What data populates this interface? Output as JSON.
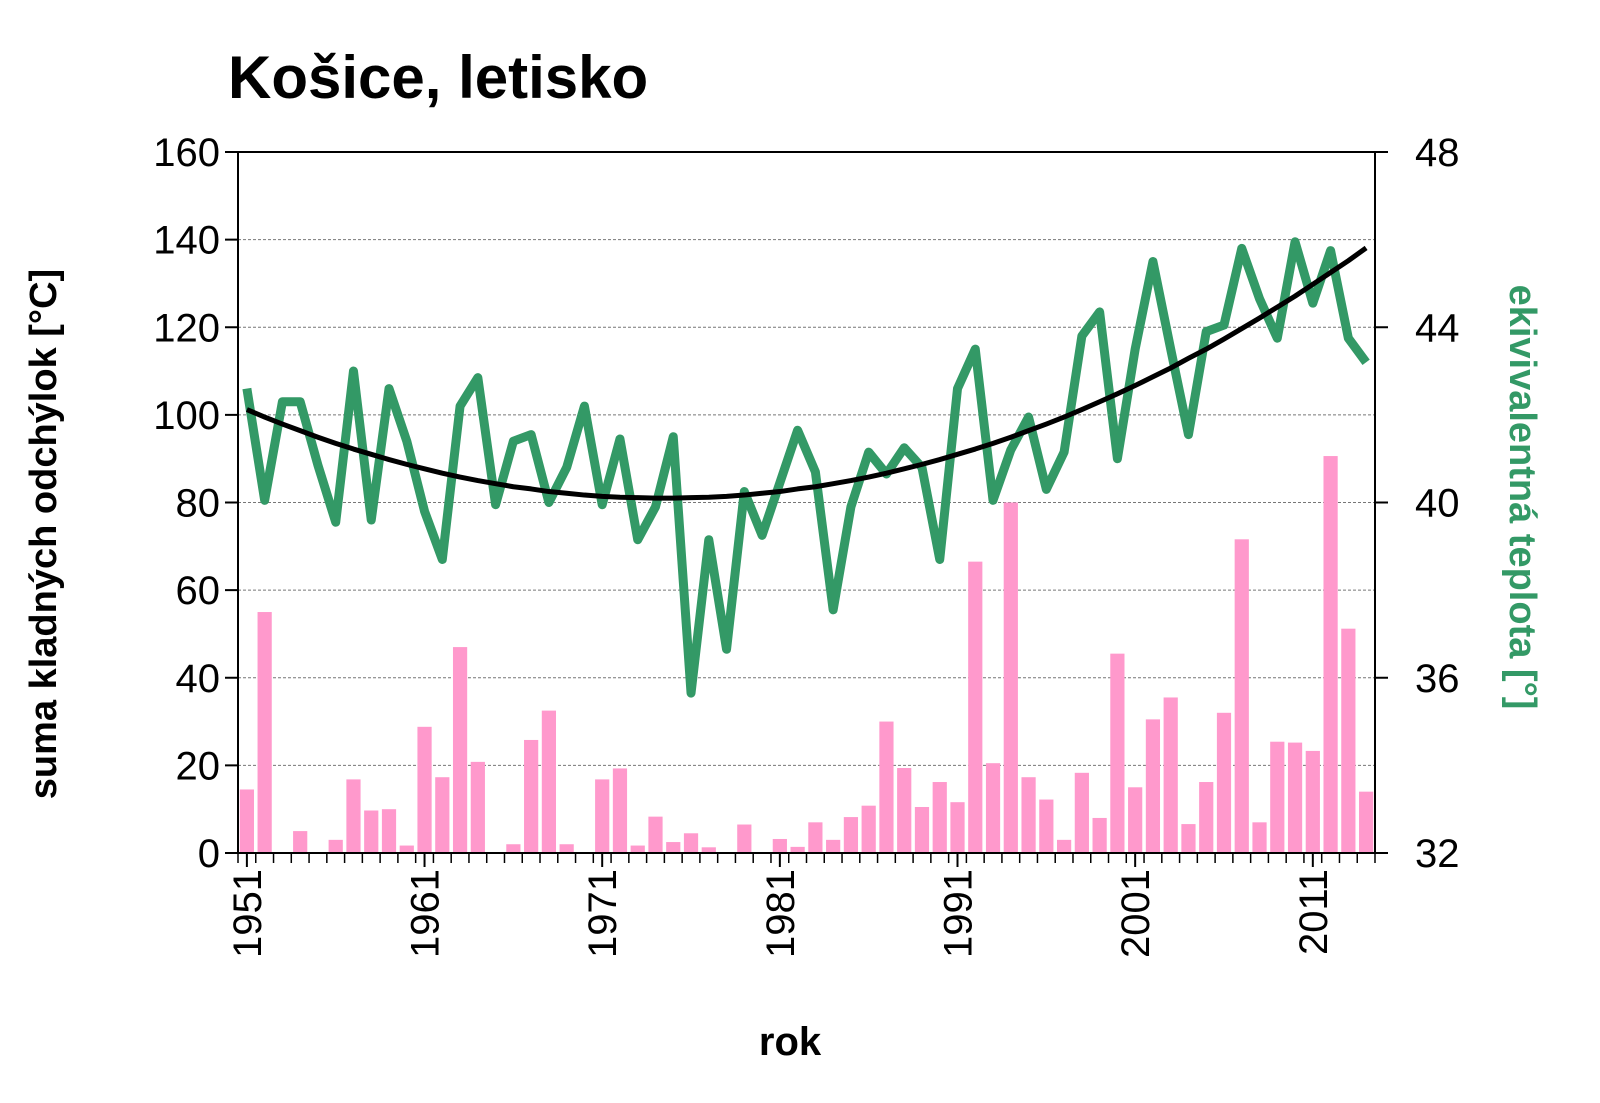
{
  "chart_data": {
    "type": "bar",
    "title": "Košice, letisko",
    "x_label": "rok",
    "y_label": "suma kladných odchýlok [°C]",
    "y2_label": "ekivivalentná teplota [°]",
    "x": [
      1951,
      1952,
      1953,
      1954,
      1955,
      1956,
      1957,
      1958,
      1959,
      1960,
      1961,
      1962,
      1963,
      1964,
      1965,
      1966,
      1967,
      1968,
      1969,
      1970,
      1971,
      1972,
      1973,
      1974,
      1975,
      1976,
      1977,
      1978,
      1979,
      1980,
      1981,
      1982,
      1983,
      1984,
      1985,
      1986,
      1987,
      1988,
      1989,
      1990,
      1991,
      1992,
      1993,
      1994,
      1995,
      1996,
      1997,
      1998,
      1999,
      2000,
      2001,
      2002,
      2003,
      2004,
      2005,
      2006,
      2007,
      2008,
      2009,
      2010,
      2011,
      2012,
      2013,
      2014
    ],
    "xlim": [
      1950.5,
      2014.5
    ],
    "xticks": [
      1951,
      1961,
      1971,
      1981,
      1991,
      2001,
      2011
    ],
    "ylim": [
      0,
      160
    ],
    "yticks": [
      0,
      20,
      40,
      60,
      80,
      100,
      120,
      140,
      160
    ],
    "y2lim": [
      32,
      48
    ],
    "y2ticks": [
      32,
      36,
      40,
      44,
      48
    ],
    "grid": true,
    "series": [
      {
        "type": "bar",
        "color": "#ff99cc",
        "values": [
          14.5,
          55,
          0,
          5,
          0,
          3,
          16.8,
          9.7,
          10,
          1.7,
          28.8,
          17.3,
          47,
          20.8,
          0,
          2,
          25.8,
          32.5,
          2,
          0,
          16.8,
          19.3,
          1.7,
          8.3,
          2.5,
          4.5,
          1.3,
          0,
          6.5,
          0,
          3.2,
          1.4,
          7,
          3,
          8.2,
          10.8,
          30,
          19.4,
          10.5,
          16.2,
          11.6,
          66.5,
          20.5,
          80,
          17.3,
          12.2,
          3,
          18.3,
          8,
          45.5,
          15,
          30.5,
          35.5,
          6.6,
          16.2,
          32,
          71.6,
          7,
          25.4,
          25.2,
          23.3,
          90.6,
          51.2,
          14
        ]
      },
      {
        "type": "line",
        "axis": "y2",
        "color": "#339966",
        "values": [
          42.6,
          40.05,
          42.3,
          42.3,
          40.85,
          39.55,
          43.0,
          39.6,
          42.6,
          41.4,
          39.8,
          38.7,
          42.2,
          42.85,
          39.95,
          41.4,
          41.55,
          40.0,
          40.8,
          42.2,
          39.95,
          41.45,
          39.15,
          39.9,
          41.5,
          35.65,
          39.15,
          36.65,
          40.25,
          39.25,
          40.45,
          41.65,
          40.7,
          37.55,
          39.9,
          41.15,
          40.65,
          41.25,
          40.8,
          38.7,
          42.6,
          43.5,
          40.05,
          41.2,
          41.95,
          40.3,
          41.15,
          43.8,
          44.35,
          41.0,
          43.5,
          45.5,
          43.5,
          41.55,
          43.9,
          44.05,
          45.8,
          44.65,
          43.75,
          45.95,
          44.55,
          45.75,
          43.75,
          43.2
        ]
      },
      {
        "type": "line",
        "axis": "y2",
        "color": "#000000",
        "values": [
          42.12,
          41.95,
          41.79,
          41.64,
          41.49,
          41.35,
          41.22,
          41.1,
          40.98,
          40.87,
          40.77,
          40.67,
          40.58,
          40.5,
          40.43,
          40.36,
          40.31,
          40.25,
          40.21,
          40.17,
          40.14,
          40.12,
          40.11,
          40.1,
          40.1,
          40.11,
          40.12,
          40.14,
          40.17,
          40.21,
          40.25,
          40.31,
          40.36,
          40.43,
          40.5,
          40.58,
          40.67,
          40.77,
          40.87,
          40.98,
          41.1,
          41.22,
          41.35,
          41.49,
          41.64,
          41.79,
          41.95,
          42.12,
          42.3,
          42.48,
          42.67,
          42.87,
          43.07,
          43.29,
          43.5,
          43.73,
          43.97,
          44.21,
          44.46,
          44.71,
          44.98,
          45.25,
          45.52,
          45.81
        ]
      }
    ]
  }
}
